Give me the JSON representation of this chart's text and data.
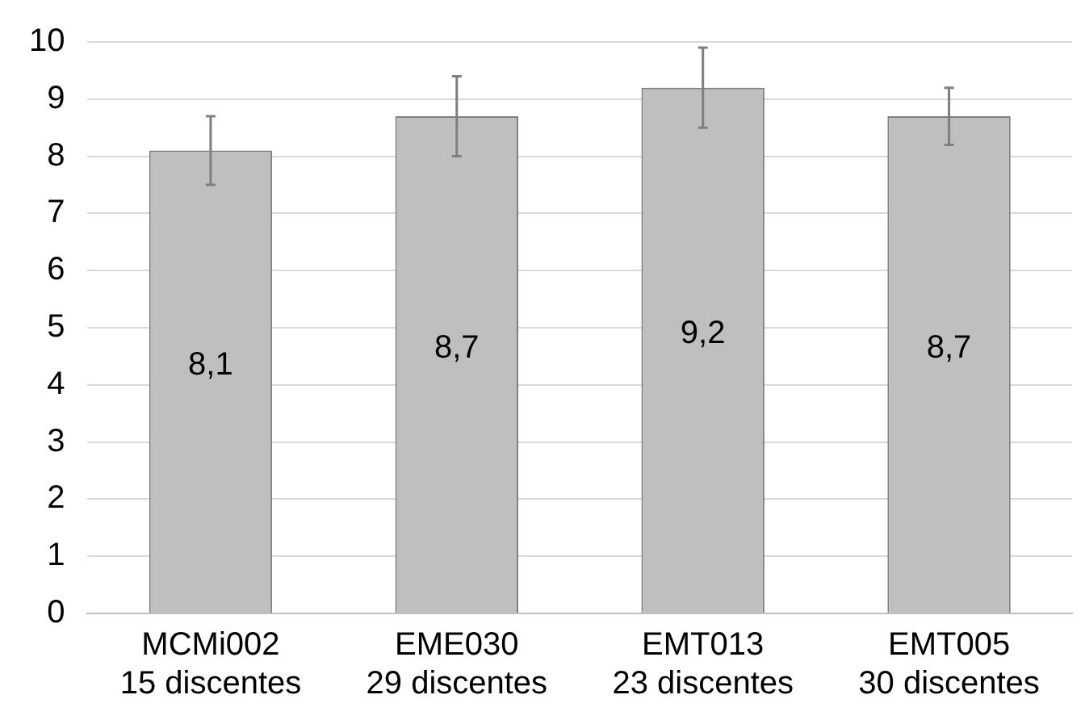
{
  "chart_data": {
    "type": "bar",
    "categories": [
      "MCMi002\n15 discentes",
      "EME030\n29 discentes",
      "EMT013\n23 discentes",
      "EMT005\n30 discentes"
    ],
    "values": [
      8.1,
      8.7,
      9.2,
      8.7
    ],
    "errors": [
      [
        7.5,
        8.7
      ],
      [
        8.0,
        9.4
      ],
      [
        8.5,
        9.9
      ],
      [
        8.2,
        9.2
      ]
    ],
    "color": "#bfbfbf",
    "ylim": [
      0,
      10
    ],
    "yticks": [
      0,
      1,
      2,
      3,
      4,
      5,
      6,
      7,
      8,
      9,
      10
    ],
    "value_labels": [
      "8,1",
      "8,7",
      "9,2",
      "8,7"
    ],
    "grid": "y",
    "legend": false
  }
}
